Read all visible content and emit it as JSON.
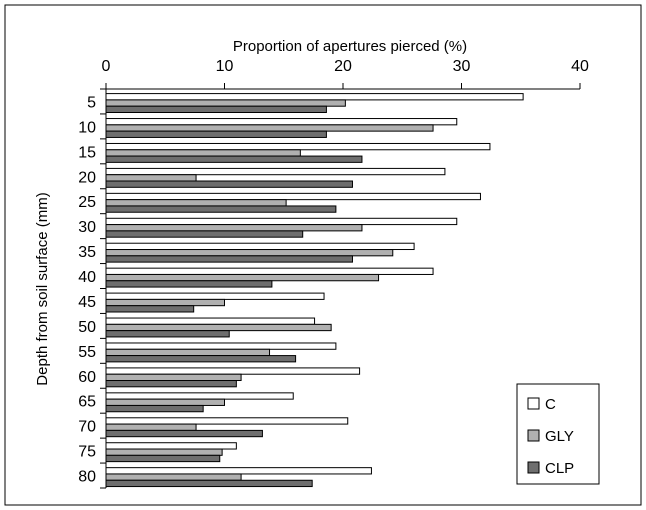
{
  "chart_data": {
    "type": "bar",
    "orientation": "horizontal",
    "xlabel": "Proportion of apertures pierced (%)",
    "ylabel": "Depth from soil surface (mm)",
    "xlim": [
      0,
      40
    ],
    "xticks": [
      "0",
      "10",
      "20",
      "30",
      "40"
    ],
    "x_axis_position": "top",
    "grid": false,
    "legend_position": "bottom-right",
    "categories": [
      "5",
      "10",
      "15",
      "20",
      "25",
      "30",
      "35",
      "40",
      "45",
      "50",
      "55",
      "60",
      "65",
      "70",
      "75",
      "80"
    ],
    "series": [
      {
        "name": "C",
        "color": "#ffffff",
        "values": [
          35.2,
          29.6,
          32.4,
          28.6,
          31.6,
          29.6,
          26.0,
          27.6,
          18.4,
          17.6,
          19.4,
          21.4,
          15.8,
          20.4,
          11.0,
          22.4
        ]
      },
      {
        "name": "GLY",
        "color": "#b0b0b0",
        "values": [
          20.2,
          27.6,
          16.4,
          7.6,
          15.2,
          21.6,
          24.2,
          23.0,
          10.0,
          19.0,
          13.8,
          11.4,
          10.0,
          7.6,
          9.8,
          11.4
        ]
      },
      {
        "name": "CLP",
        "color": "#6e6e6e",
        "values": [
          18.6,
          18.6,
          21.6,
          20.8,
          19.4,
          16.6,
          20.8,
          14.0,
          7.4,
          10.4,
          16.0,
          11.0,
          8.2,
          13.2,
          9.6,
          17.4
        ]
      }
    ]
  }
}
